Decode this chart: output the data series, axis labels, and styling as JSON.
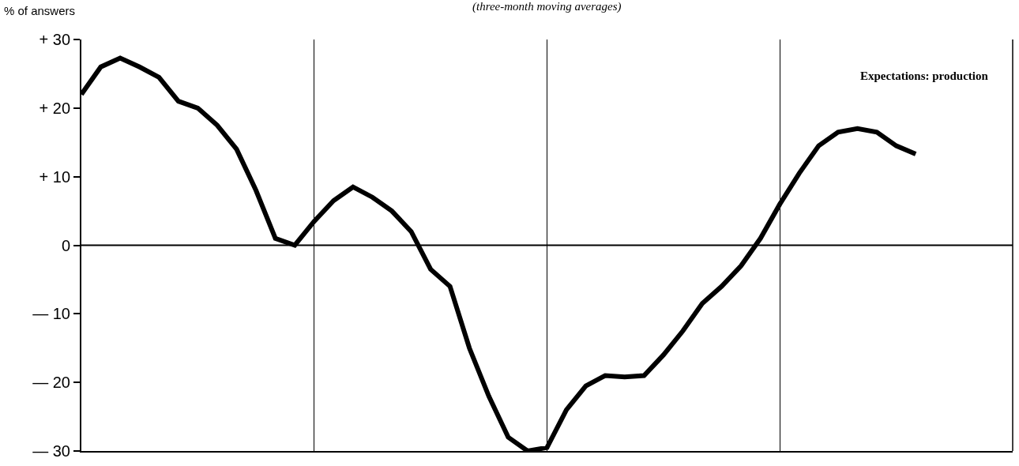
{
  "chart_data": {
    "type": "line",
    "subtitle": "(three-month moving averages)",
    "ylabel": "% of answers",
    "categories": [
      null,
      null,
      null,
      null,
      null,
      null,
      null,
      null,
      null,
      null,
      null,
      null,
      null,
      null,
      null,
      null,
      null,
      null,
      null,
      null,
      null,
      null,
      null,
      null,
      null,
      null,
      null,
      null,
      null,
      null,
      null,
      null,
      null,
      null,
      null,
      null,
      null,
      null,
      null,
      null,
      null,
      null,
      null,
      null,
      null,
      null,
      null,
      null,
      null
    ],
    "series": [
      {
        "color": "#000000",
        "values": [
          22,
          26,
          27.3,
          26,
          24.5,
          21,
          20,
          17.5,
          14,
          8,
          1,
          0,
          3.5,
          6.5,
          8.5,
          7,
          5,
          2,
          -3.5,
          -6,
          -15,
          -22,
          -28,
          -30,
          -29.5,
          -24,
          -20.5,
          -19,
          -19.2,
          -19,
          -16,
          -12.5,
          -8.5,
          -6,
          -3,
          1,
          6,
          10.5,
          14.5,
          16.5,
          17,
          16.5,
          14.5,
          13.3,
          null,
          null,
          null,
          null,
          null
        ]
      }
    ],
    "ylim": [
      -30,
      30
    ],
    "yticks": [
      {
        "value": 30,
        "label": "+ 30"
      },
      {
        "value": 20,
        "label": "+ 20"
      },
      {
        "value": 10,
        "label": "+ 10"
      },
      0,
      {
        "value": -10,
        "label": "— 10"
      },
      {
        "value": -20,
        "label": "— 20"
      },
      {
        "value": -30,
        "label": "— 30"
      }
    ],
    "ref_lines": [
      {
        "axis": "y",
        "value": 0,
        "color": "#000000"
      }
    ],
    "annotations": [
      "Expectations: production"
    ],
    "grid": "x",
    "tick_labels": "y",
    "marker": "none",
    "line_style": "solid"
  }
}
